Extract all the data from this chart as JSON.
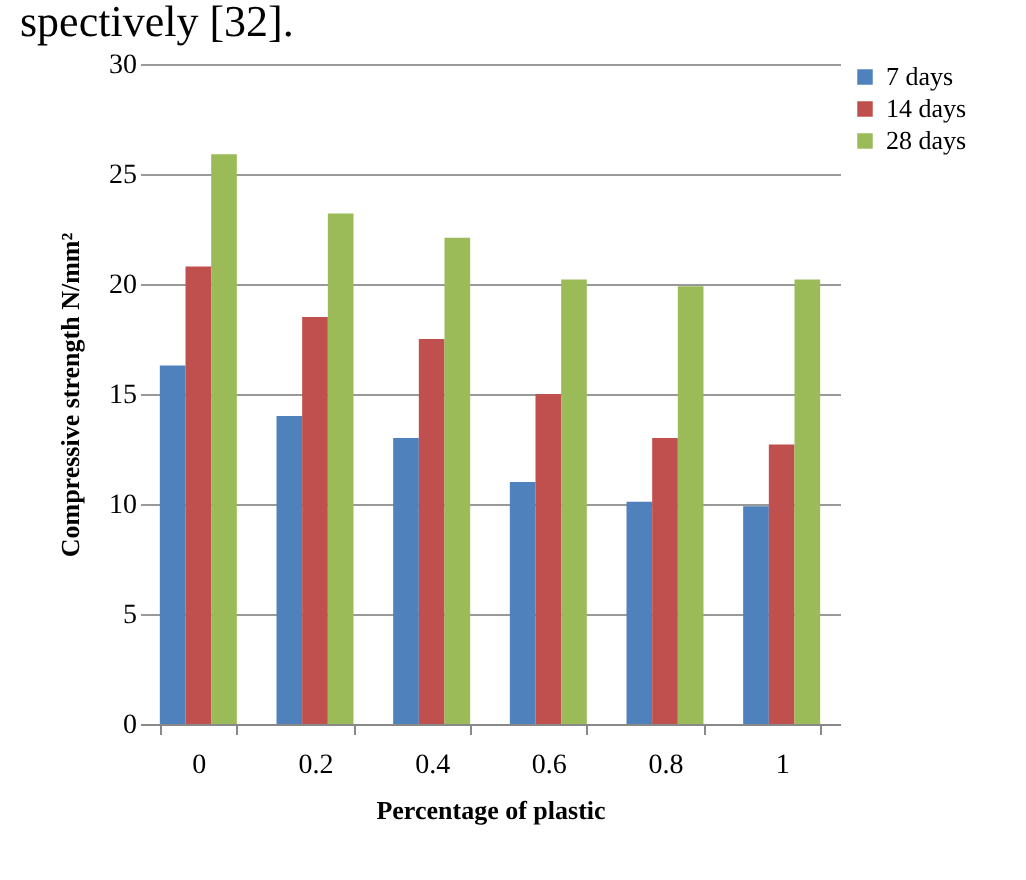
{
  "chart_data": {
    "type": "bar",
    "xlabel": "Percentage of plastic",
    "ylabel": "Compressive strength N/mm²",
    "categories": [
      "0",
      "0.2",
      "0.4",
      "0.6",
      "0.8",
      "1"
    ],
    "series": [
      {
        "name": "7 days",
        "color": "#4f81bd",
        "values": [
          16.3,
          14,
          13,
          11,
          10.1,
          9.9
        ]
      },
      {
        "name": "14 days",
        "color": "#c0504d",
        "values": [
          20.8,
          18.5,
          17.5,
          15,
          13,
          12.7
        ]
      },
      {
        "name": "28 days",
        "color": "#9bbb59",
        "values": [
          25.9,
          23.2,
          22.1,
          20.2,
          19.9,
          20.2
        ]
      }
    ],
    "ylim": [
      0,
      30
    ],
    "yticks": [
      0,
      5,
      10,
      15,
      20,
      25,
      30
    ],
    "grid": "y",
    "legend": "right",
    "annotations": [
      "spectively [32]."
    ]
  }
}
